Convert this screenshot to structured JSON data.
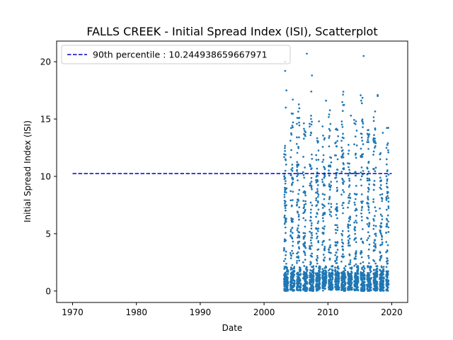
{
  "chart_data": {
    "type": "scatter",
    "title": "FALLS CREEK - Initial Spread Index (ISI), Scatterplot",
    "xlabel": "Date",
    "ylabel": "Initial Spread Index (ISI)",
    "xlim": [
      1967.5,
      2022.5
    ],
    "ylim": [
      -1.0,
      21.8
    ],
    "xticks": [
      1970,
      1980,
      1990,
      2000,
      2010,
      2020
    ],
    "yticks": [
      0,
      5,
      10,
      15,
      20
    ],
    "grid": false,
    "legend_position": "top-left",
    "colors": {
      "points": "#1f77b4",
      "percentile_line": "#0000cc"
    },
    "reference_line": {
      "label": "90th percentile : 10.244938659667971",
      "value": 10.244938659667971,
      "x_range": [
        1970,
        2020
      ],
      "style": "dashed"
    },
    "series": [
      {
        "x_range": [
          2003,
          2019.5
        ],
        "seasons": [
          2003.2,
          2004.2,
          2005.2,
          2006.2,
          2007.2,
          2008.2,
          2009.2,
          2010.2,
          2011.2,
          2012.2,
          2013.2,
          2014.2,
          2015.2,
          2016.2,
          2017.2,
          2018.2,
          2019.2
        ],
        "notable_points": [
          {
            "x": 2003.3,
            "y": 20.0
          },
          {
            "x": 2003.3,
            "y": 19.2
          },
          {
            "x": 2003.5,
            "y": 17.5
          },
          {
            "x": 2004.5,
            "y": 16.7
          },
          {
            "x": 2006.7,
            "y": 20.7
          },
          {
            "x": 2007.5,
            "y": 18.8
          },
          {
            "x": 2007.4,
            "y": 17.4
          },
          {
            "x": 2009.7,
            "y": 16.6
          },
          {
            "x": 2015.6,
            "y": 20.5
          },
          {
            "x": 2017.8,
            "y": 17.1
          },
          {
            "x": 2017.8,
            "y": 17.0
          },
          {
            "x": 2003.4,
            "y": 16.0
          },
          {
            "x": 2005.2,
            "y": 15.1
          },
          {
            "x": 2008.6,
            "y": 14.8
          },
          {
            "x": 2013.6,
            "y": 15.3
          },
          {
            "x": 2011.6,
            "y": 13.5
          },
          {
            "x": 2014.4,
            "y": 14.8
          },
          {
            "x": 2015.5,
            "y": 14.6
          },
          {
            "x": 2018.6,
            "y": 13.8
          },
          {
            "x": 2019.5,
            "y": 7.8
          },
          {
            "x": 2019.4,
            "y": 4.0
          },
          {
            "x": 2019.5,
            "y": 0.6
          }
        ]
      }
    ]
  }
}
